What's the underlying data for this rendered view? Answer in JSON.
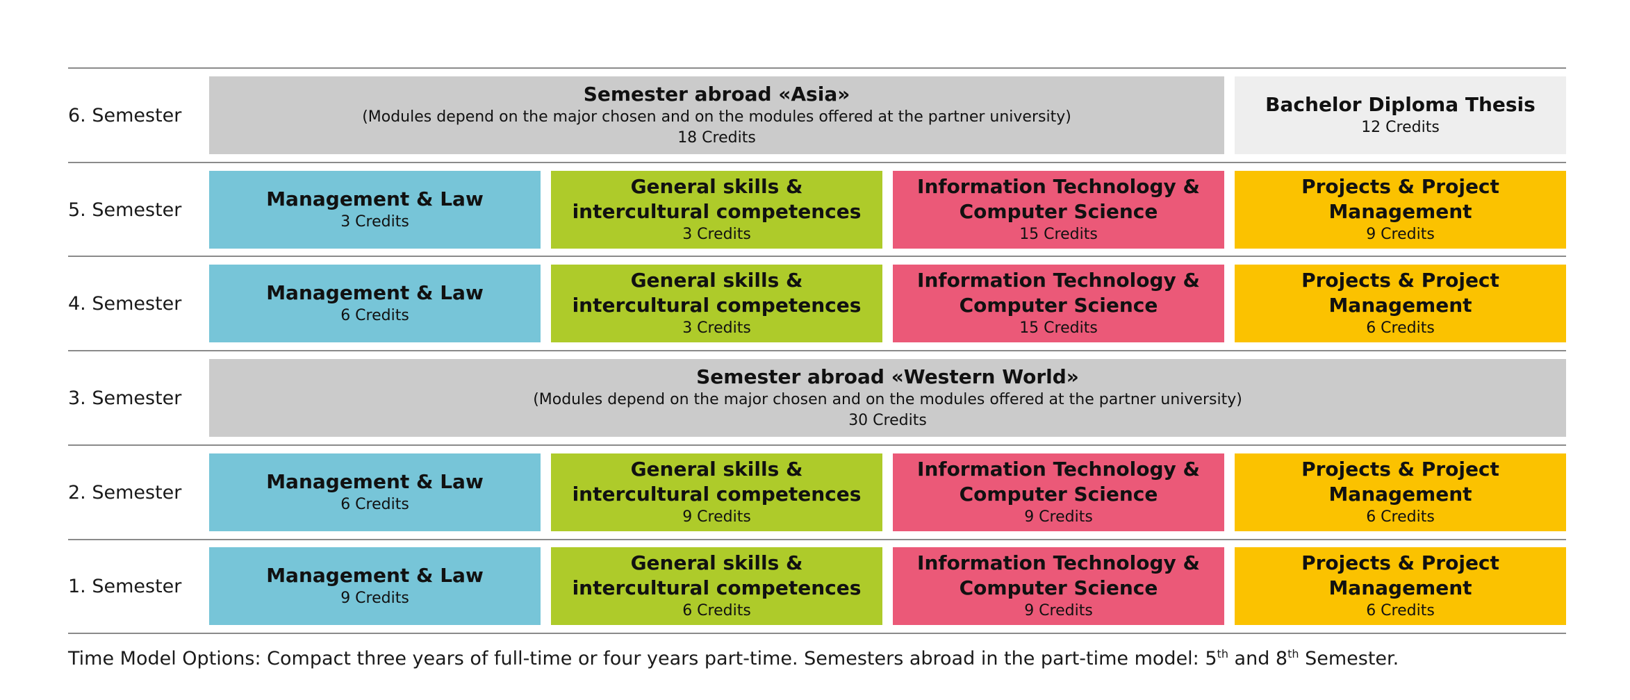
{
  "semesters": {
    "s6": {
      "label": "6. Semester",
      "abroad": {
        "title": "Semester abroad «Asia»",
        "note": "(Modules depend on the major chosen and on the modules offered at the partner university)",
        "credits": "18 Credits"
      },
      "thesis": {
        "title": "Bachelor Diploma Thesis",
        "credits": "12 Credits"
      }
    },
    "s5": {
      "label": "5. Semester",
      "mgmt": {
        "title": "Management & Law",
        "credits": "3 Credits"
      },
      "skills": {
        "title": "General skills & intercultural competences",
        "credits": "3 Credits"
      },
      "it": {
        "title": "Information Technology & Computer Science",
        "credits": "15 Credits"
      },
      "proj": {
        "title": "Projects & Project Management",
        "credits": "9 Credits"
      }
    },
    "s4": {
      "label": "4. Semester",
      "mgmt": {
        "title": "Management & Law",
        "credits": "6 Credits"
      },
      "skills": {
        "title": "General skills & intercultural competences",
        "credits": "3 Credits"
      },
      "it": {
        "title": "Information Technology & Computer Science",
        "credits": "15 Credits"
      },
      "proj": {
        "title": "Projects & Project Management",
        "credits": "6 Credits"
      }
    },
    "s3": {
      "label": "3. Semester",
      "abroad": {
        "title": "Semester abroad «Western World»",
        "note": "(Modules depend on the major chosen and on the modules offered at the partner university)",
        "credits": "30 Credits"
      }
    },
    "s2": {
      "label": "2. Semester",
      "mgmt": {
        "title": "Management & Law",
        "credits": "6 Credits"
      },
      "skills": {
        "title": "General skills & intercultural competences",
        "credits": "9 Credits"
      },
      "it": {
        "title": "Information Technology & Computer Science",
        "credits": "9 Credits"
      },
      "proj": {
        "title": "Projects & Project Management",
        "credits": "6 Credits"
      }
    },
    "s1": {
      "label": "1. Semester",
      "mgmt": {
        "title": "Management & Law",
        "credits": "9 Credits"
      },
      "skills": {
        "title": "General skills & intercultural competences",
        "credits": "6 Credits"
      },
      "it": {
        "title": "Information Technology & Computer Science",
        "credits": "9 Credits"
      },
      "proj": {
        "title": "Projects & Project Management",
        "credits": "6 Credits"
      }
    }
  },
  "footnote": {
    "lead": "Time Model Options: Compact three years of full-time or four years part-time. Semesters abroad in the part-time model: 5",
    "sup1": "th",
    "mid": " and 8",
    "sup2": "th",
    "tail": " Semester."
  },
  "colors": {
    "management": "#77c5d8",
    "skills": "#aecb2a",
    "it": "#eb5978",
    "projects": "#fbc200",
    "abroad": "#cbcbcb",
    "thesis": "#eeeeee"
  }
}
